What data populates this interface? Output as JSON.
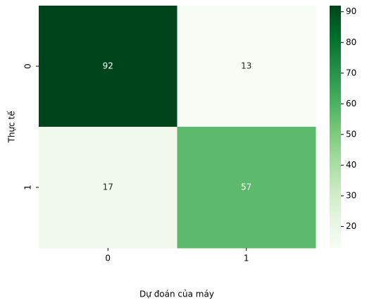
{
  "chart_data": {
    "type": "heatmap",
    "x_label": "Dự đoán của máy",
    "y_label": "Thực tế",
    "x_categories": [
      "0",
      "1"
    ],
    "y_categories": [
      "0",
      "1"
    ],
    "values": [
      [
        92,
        13
      ],
      [
        17,
        57
      ]
    ],
    "clim": [
      13,
      92
    ],
    "cticks": [
      20,
      30,
      40,
      50,
      60,
      70,
      80,
      90
    ],
    "colormap": [
      "#f7fcf5",
      "#e5f5e0",
      "#c7e9c0",
      "#a1d99b",
      "#74c476",
      "#41ab5d",
      "#238b45",
      "#006d2c",
      "#00441b"
    ]
  }
}
